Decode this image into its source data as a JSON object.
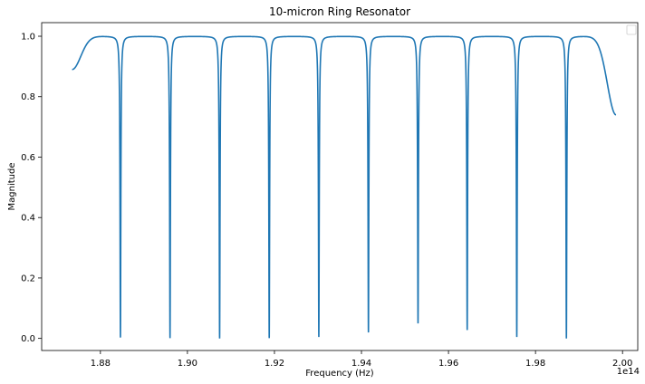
{
  "chart_data": {
    "type": "line",
    "title": "10-micron Ring Resonator",
    "xlabel": "Frequency (Hz)",
    "ylabel": "Magnitude",
    "x_offset_label": "1e14",
    "xlim": [
      1.8665,
      2.0035
    ],
    "ylim": [
      -0.04,
      1.045
    ],
    "x_ticks": [
      1.88,
      1.9,
      1.92,
      1.94,
      1.96,
      1.98,
      2.0
    ],
    "x_tick_labels": [
      "1.88",
      "1.90",
      "1.92",
      "1.94",
      "1.96",
      "1.98",
      "2.00"
    ],
    "y_ticks": [
      0.0,
      0.2,
      0.4,
      0.6,
      0.8,
      1.0
    ],
    "y_tick_labels": [
      "0.0",
      "0.2",
      "0.4",
      "0.6",
      "0.8",
      "1.0"
    ],
    "grid": false,
    "legend": "top-right",
    "series": [
      {
        "color": "#1f77b4",
        "x_start": 1.8735,
        "x_end": 1.9985,
        "resonances": [
          {
            "x": 1.8846,
            "y": 0.003
          },
          {
            "x": 1.896,
            "y": 0.001
          },
          {
            "x": 1.9074,
            "y": 0.0
          },
          {
            "x": 1.9188,
            "y": 0.001
          },
          {
            "x": 1.9302,
            "y": 0.005
          },
          {
            "x": 1.9416,
            "y": 0.02
          },
          {
            "x": 1.953,
            "y": 0.05
          },
          {
            "x": 1.9643,
            "y": 0.028
          },
          {
            "x": 1.9757,
            "y": 0.005
          },
          {
            "x": 1.9871,
            "y": 0.0
          }
        ],
        "baseline": 1.0,
        "start_value": 0.89,
        "end_value": 0.74
      }
    ]
  }
}
